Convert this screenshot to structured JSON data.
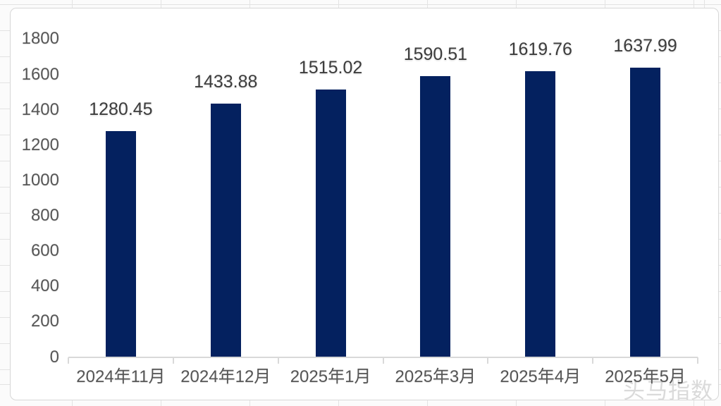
{
  "chart_data": {
    "type": "bar",
    "categories": [
      "2024年11月",
      "2024年12月",
      "2025年1月",
      "2025年3月",
      "2025年4月",
      "2025年5月"
    ],
    "values": [
      1280.45,
      1433.88,
      1515.02,
      1590.51,
      1619.76,
      1637.99
    ],
    "value_labels": [
      "1280.45",
      "1433.88",
      "1515.02",
      "1590.51",
      "1619.76",
      "1637.99"
    ],
    "title": "",
    "xlabel": "",
    "ylabel": "",
    "ylim": [
      0,
      1800
    ],
    "yticks": [
      0,
      200,
      400,
      600,
      800,
      1000,
      1200,
      1400,
      1600,
      1800
    ],
    "grid": false,
    "legend": null,
    "bar_color": "#04215f"
  },
  "watermark": {
    "text": "头马指数"
  },
  "colors": {
    "bar": "#04215f",
    "value_label": "#3c3c3c",
    "axis_text": "#565656",
    "axis_line": "#d9d9d9",
    "watermark": "#dadada",
    "panel_background": "#ffffff",
    "panel_border": "#d7d7d7",
    "sheet_background": "#fbfbfb",
    "sheet_gridline": "#e3e3e3"
  }
}
